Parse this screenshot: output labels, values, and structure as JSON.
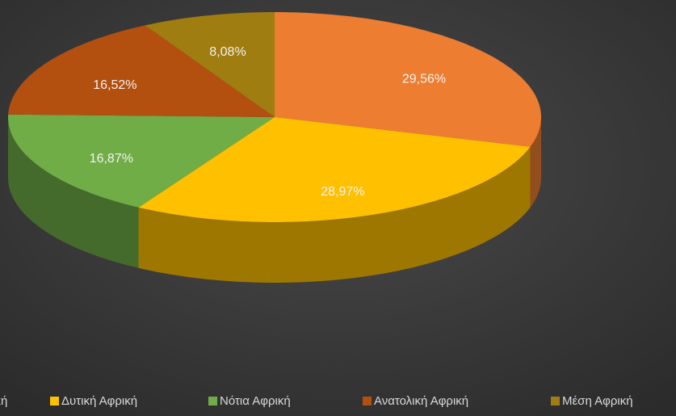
{
  "chart_data": {
    "type": "pie",
    "categories": [
      "Βόρεια Αφρική",
      "Δυτική Αφρική",
      "Νότια Αφρική",
      "Ανατολική Αφρική",
      "Μέση Αφρική"
    ],
    "values": [
      29.56,
      28.97,
      16.87,
      16.52,
      8.08
    ],
    "value_labels": [
      "29,56%",
      "28,97%",
      "16,87%",
      "16,52%",
      "8,08%"
    ],
    "colors": [
      "#ed7d31",
      "#ffc000",
      "#70ad47",
      "#b3500f",
      "#a07d10"
    ],
    "legend": "bottom"
  }
}
